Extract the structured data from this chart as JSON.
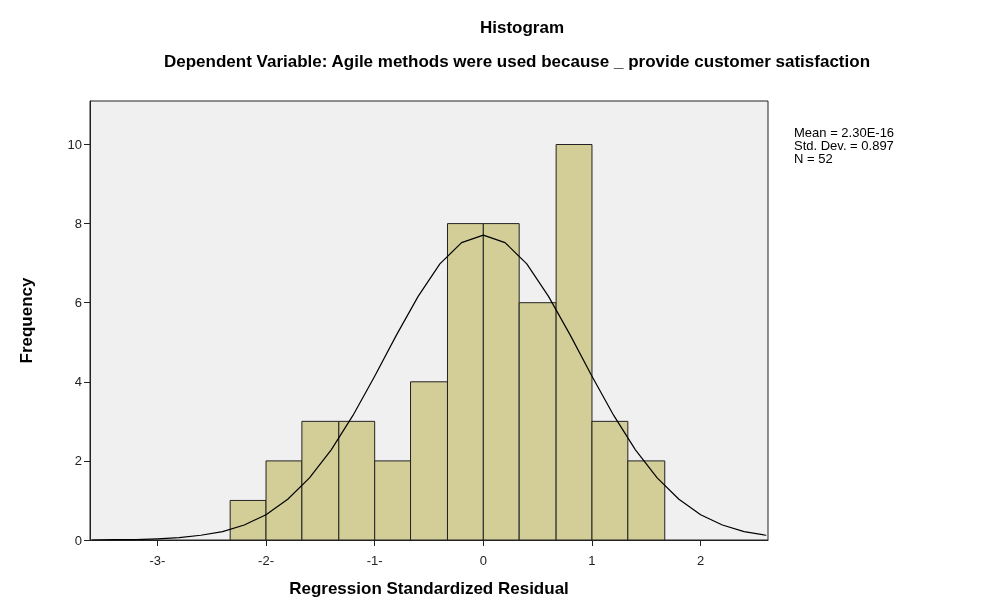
{
  "chart_data": {
    "type": "histogram",
    "title": "Histogram",
    "subtitle": "Dependent Variable: Agile methods were used because _ provide customer satisfaction",
    "xlabel": "Regression Standardized Residual",
    "ylabel": "Frequency",
    "bins": [
      -2.33,
      -2,
      -1.67,
      -1.33,
      -1,
      -0.67,
      -0.33,
      0,
      0.33,
      0.67,
      1,
      1.33,
      1.67
    ],
    "values": [
      1,
      2,
      3,
      3,
      2,
      4,
      8,
      8,
      6,
      10,
      3,
      2
    ],
    "color": "#d3ce97",
    "series": [
      {
        "type": "line",
        "color": "#000000",
        "x": [
          -3.6,
          -3.4,
          -3.2,
          -3.0,
          -2.8,
          -2.6,
          -2.4,
          -2.2,
          -2.0,
          -1.8,
          -1.6,
          -1.4,
          -1.2,
          -1.0,
          -0.8,
          -0.6,
          -0.4,
          -0.2,
          0,
          0.2,
          0.4,
          0.6,
          0.8,
          1.0,
          1.2,
          1.4,
          1.6,
          1.8,
          2.0,
          2.2,
          2.4,
          2.6
        ],
        "values": [
          0,
          0.01,
          0.01,
          0.03,
          0.06,
          0.12,
          0.21,
          0.38,
          0.64,
          1.03,
          1.57,
          2.28,
          3.15,
          4.14,
          5.18,
          6.16,
          6.98,
          7.52,
          7.71,
          7.52,
          6.98,
          6.16,
          5.18,
          4.14,
          3.15,
          2.28,
          1.57,
          1.03,
          0.64,
          0.38,
          0.21,
          0.12
        ]
      }
    ],
    "xlim": [
      -3.62,
      2.62
    ],
    "ylim": [
      0,
      11.1
    ],
    "xticks": [
      {
        "value": -3,
        "label": "-3-"
      },
      {
        "value": -2,
        "label": "-2-"
      },
      {
        "value": -1,
        "label": "-1-"
      },
      0,
      1,
      2
    ],
    "yticks": [
      0,
      2,
      4,
      6,
      8,
      10
    ],
    "grid": false,
    "marker": "none",
    "line_style": "solid",
    "annotations": [
      "Mean = 2.30E-16",
      "Std. Dev. = 0.897",
      "N = 52"
    ]
  }
}
